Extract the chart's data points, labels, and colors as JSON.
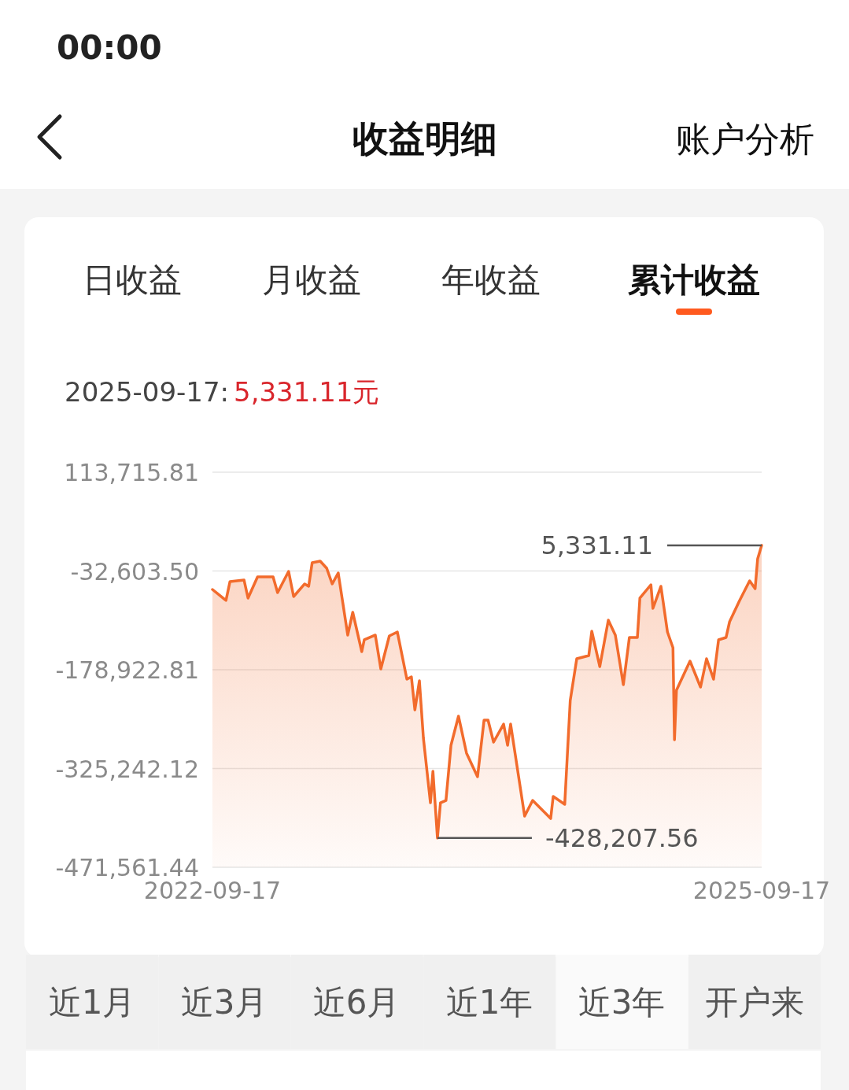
{
  "chart_data": {
    "type": "line",
    "title": "2025-09-17:",
    "subtitle": "5,331.11元",
    "annotations": [
      "00:00",
      "收益明细",
      "账户分析",
      "日收益",
      "月收益",
      "年收益",
      "累计收益",
      "近1月",
      "近3月",
      "近6月",
      "近1年",
      "近3年",
      "开户来",
      {
        "text": "5,331.11",
        "x": "2025-09-17",
        "y": 5331.11
      },
      {
        "text": "-428,207.56",
        "x": "2023-12-10",
        "y": -428207.56
      }
    ],
    "x": [
      "2022-09-17",
      "2022-10-14",
      "2022-10-22",
      "2022-11-19",
      "2022-11-27",
      "2022-12-16",
      "2023-01-16",
      "2023-01-25",
      "2023-02-16",
      "2023-02-26",
      "2023-03-20",
      "2023-03-28",
      "2023-04-04",
      "2023-04-20",
      "2023-05-03",
      "2023-05-14",
      "2023-05-26",
      "2023-06-14",
      "2023-06-24",
      "2023-07-12",
      "2023-07-17",
      "2023-08-08",
      "2023-08-19",
      "2023-09-05",
      "2023-09-21",
      "2023-10-10",
      "2023-10-19",
      "2023-10-26",
      "2023-11-04",
      "2023-11-12",
      "2023-11-26",
      "2023-12-01",
      "2023-12-10",
      "2023-12-16",
      "2023-12-27",
      "2024-01-06",
      "2024-01-21",
      "2024-02-06",
      "2024-02-28",
      "2024-03-12",
      "2024-03-20",
      "2024-03-31",
      "2024-04-20",
      "2024-04-28",
      "2024-05-04",
      "2024-06-01",
      "2024-06-17",
      "2024-07-23",
      "2024-07-28",
      "2024-08-20",
      "2024-08-31",
      "2024-09-13",
      "2024-10-07",
      "2024-10-13",
      "2024-10-29",
      "2024-11-15",
      "2024-11-29",
      "2024-12-15",
      "2024-12-27",
      "2025-01-12",
      "2025-01-17",
      "2025-02-08",
      "2025-02-12",
      "2025-02-28",
      "2025-03-13",
      "2025-03-24",
      "2025-03-27",
      "2025-03-31",
      "2025-04-27",
      "2025-05-18",
      "2025-05-30",
      "2025-06-13",
      "2025-06-23",
      "2025-07-08",
      "2025-07-15",
      "2025-08-04",
      "2025-08-24",
      "2025-09-04",
      "2025-09-09",
      "2025-09-17"
    ],
    "values": [
      -60000,
      -76300,
      -48300,
      -46000,
      -72800,
      -41300,
      -41300,
      -64700,
      -33200,
      -70500,
      -51800,
      -55300,
      -20400,
      -18000,
      -28500,
      -51800,
      -35500,
      -127600,
      -93800,
      -152100,
      -134600,
      -127600,
      -177800,
      -128800,
      -123000,
      -192900,
      -189400,
      -238400,
      -195200,
      -280400,
      -376000,
      -329300,
      -428207.56,
      -376000,
      -372500,
      -290900,
      -247700,
      -302500,
      -337500,
      -253500,
      -253500,
      -286200,
      -259400,
      -290900,
      -259400,
      -395800,
      -372500,
      -399300,
      -366600,
      -378300,
      -224400,
      -162600,
      -157900,
      -121800,
      -174300,
      -105500,
      -127600,
      -201100,
      -131100,
      -131100,
      -72800,
      -53000,
      -88000,
      -55300,
      -123000,
      -146300,
      -282700,
      -209200,
      -166100,
      -204600,
      -162600,
      -192900,
      -134600,
      -131100,
      -107800,
      -76300,
      -47200,
      -58800,
      -14500,
      5331.11
    ],
    "color": "#f26b2c",
    "xlim": [
      "2022-09-17",
      "2025-09-17"
    ],
    "xticks": [
      "2022-09-17",
      "2025-09-17"
    ],
    "ylim": [
      -471561.44,
      113715.81
    ],
    "yticks": [
      {
        "value": 113715.81,
        "label": "113,715.81"
      },
      {
        "value": -32603.5,
        "label": "-32,603.50"
      },
      {
        "value": -178922.81,
        "label": "-178,922.81"
      },
      {
        "value": -325242.12,
        "label": "-325,242.12"
      },
      {
        "value": -471561.44,
        "label": "-471,561.44"
      }
    ],
    "grid": "y"
  }
}
